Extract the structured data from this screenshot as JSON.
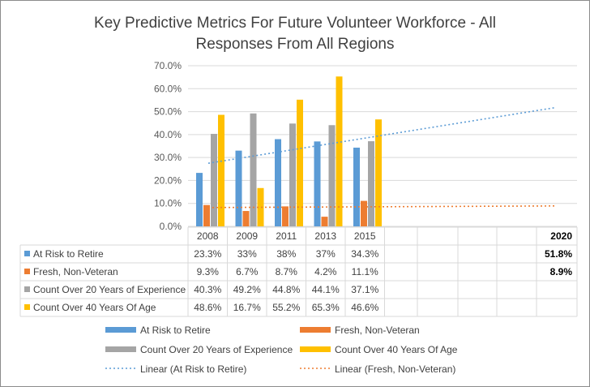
{
  "chart_data": {
    "type": "bar",
    "title_line1": "Key Predictive Metrics For Future Volunteer Workforce - All",
    "title_line2": "Responses  From All Regions",
    "categories": [
      "2008",
      "2009",
      "2011",
      "2013",
      "2015"
    ],
    "y_ticks": [
      "0.0%",
      "10.0%",
      "20.0%",
      "30.0%",
      "40.0%",
      "50.0%",
      "60.0%",
      "70.0%"
    ],
    "ylim": [
      0,
      70
    ],
    "grid": true,
    "legend_position": "bottom",
    "series": [
      {
        "name": "At Risk to Retire",
        "color": "#5b9bd5",
        "values": [
          23.3,
          33,
          38,
          37,
          34.3
        ],
        "labels": [
          "23.3%",
          "33%",
          "38%",
          "37%",
          "34.3%"
        ]
      },
      {
        "name": "Fresh, Non-Veteran",
        "color": "#ed7d31",
        "values": [
          9.3,
          6.7,
          8.7,
          4.2,
          11.1
        ],
        "labels": [
          "9.3%",
          "6.7%",
          "8.7%",
          "4.2%",
          "11.1%"
        ]
      },
      {
        "name": "Count Over 20 Years of Experience",
        "color": "#a5a5a5",
        "values": [
          40.3,
          49.2,
          44.8,
          44.1,
          37.1
        ],
        "labels": [
          "40.3%",
          "49.2%",
          "44.8%",
          "44.1%",
          "37.1%"
        ]
      },
      {
        "name": "Count Over 40 Years Of Age",
        "color": "#ffc000",
        "values": [
          48.6,
          16.7,
          55.2,
          65.3,
          46.6
        ],
        "labels": [
          "48.6%",
          "16.7%",
          "55.2%",
          "65.3%",
          "46.6%"
        ]
      }
    ],
    "trendlines": [
      {
        "name": "Linear (At Risk to Retire)",
        "color": "#5b9bd5",
        "start": 27.5,
        "end": 51.8
      },
      {
        "name": "Linear (Fresh, Non-Veteran)",
        "color": "#ed7d31",
        "start": 8.2,
        "end": 8.9
      }
    ],
    "forecast": {
      "header": "2020",
      "values": [
        "51.8%",
        "8.9%"
      ]
    }
  }
}
